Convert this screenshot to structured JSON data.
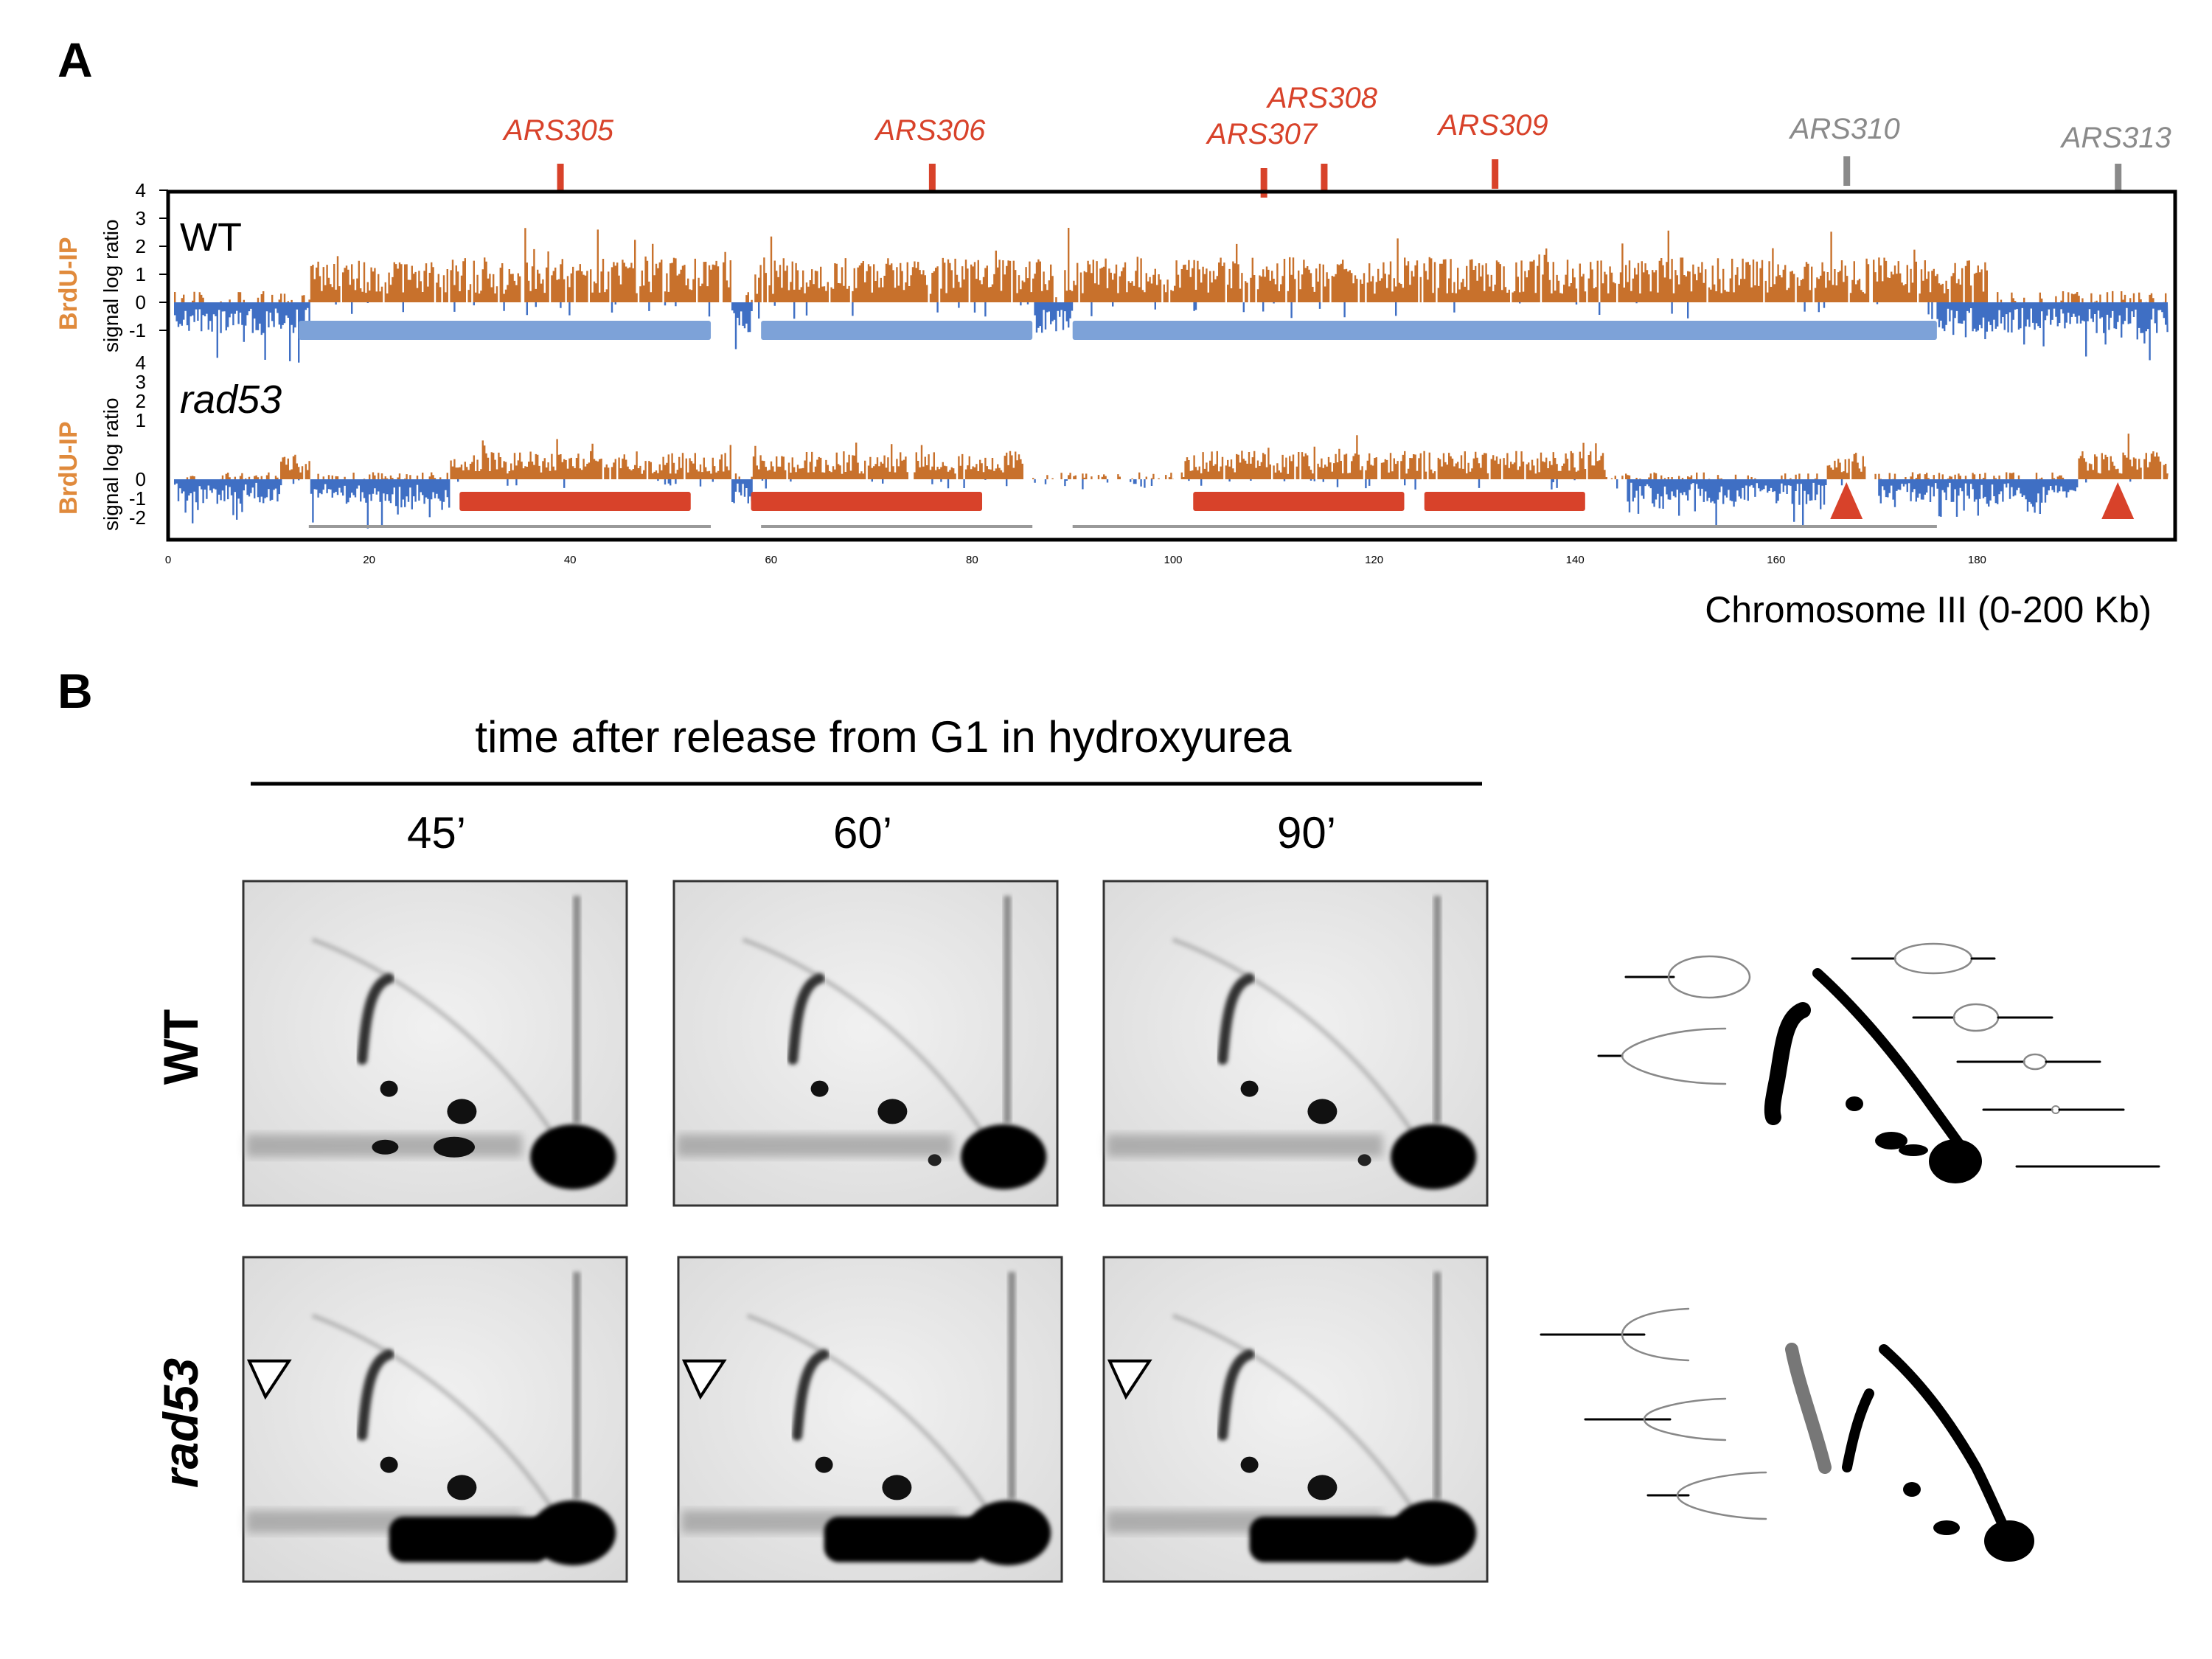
{
  "panel_a": {
    "letter": "A",
    "ars_labels": [
      {
        "name": "ARS305",
        "kb": 39,
        "color": "red"
      },
      {
        "name": "ARS306",
        "kb": 76,
        "color": "red"
      },
      {
        "name": "ARS307",
        "kb": 109,
        "color": "red"
      },
      {
        "name": "ARS308",
        "kb": 115,
        "color": "red"
      },
      {
        "name": "ARS309",
        "kb": 132,
        "color": "red"
      },
      {
        "name": "ARS310",
        "kb": 167,
        "color": "grey"
      },
      {
        "name": "ARS313",
        "kb": 194,
        "color": "grey"
      }
    ],
    "tracks": [
      {
        "strain": "WT",
        "italic": false,
        "side_label": "BrdU-IP",
        "side_sub": "signal log ratio",
        "y_ticks": [
          "4",
          "3",
          "2",
          "1",
          "0",
          "-1"
        ],
        "bars": [
          [
            13,
            54
          ],
          [
            59,
            86
          ],
          [
            90,
            176
          ]
        ],
        "bar_color": "#7da2d8",
        "arrowheads": []
      },
      {
        "strain": "rad53",
        "italic": true,
        "side_label": "BrdU-IP",
        "side_sub": "signal log ratio",
        "y_ticks": [
          "4",
          "3",
          "2",
          "1",
          "0",
          "-1",
          "-2"
        ],
        "bars": [
          [
            29,
            52
          ],
          [
            58,
            81
          ],
          [
            102,
            123
          ],
          [
            125,
            141
          ]
        ],
        "bar_color": "#d8422a",
        "arrowheads": [
          167,
          194
        ]
      }
    ],
    "x_ticks": [
      "0",
      "20",
      "40",
      "60",
      "80",
      "100",
      "120",
      "140",
      "160",
      "180"
    ],
    "x_title": "Chromosome III (0-200 Kb)",
    "colors": {
      "positive": "#c8712c",
      "negative": "#3f6fc4",
      "red": "#d8422a",
      "grey": "#8a8a8a"
    }
  },
  "panel_b": {
    "letter": "B",
    "caption": "time after release from G1 in hydroxyurea",
    "times": [
      "45’",
      "60’",
      "90’"
    ],
    "rows": [
      {
        "label": "WT",
        "italic": false
      },
      {
        "label": "rad53",
        "italic": true
      }
    ]
  }
}
